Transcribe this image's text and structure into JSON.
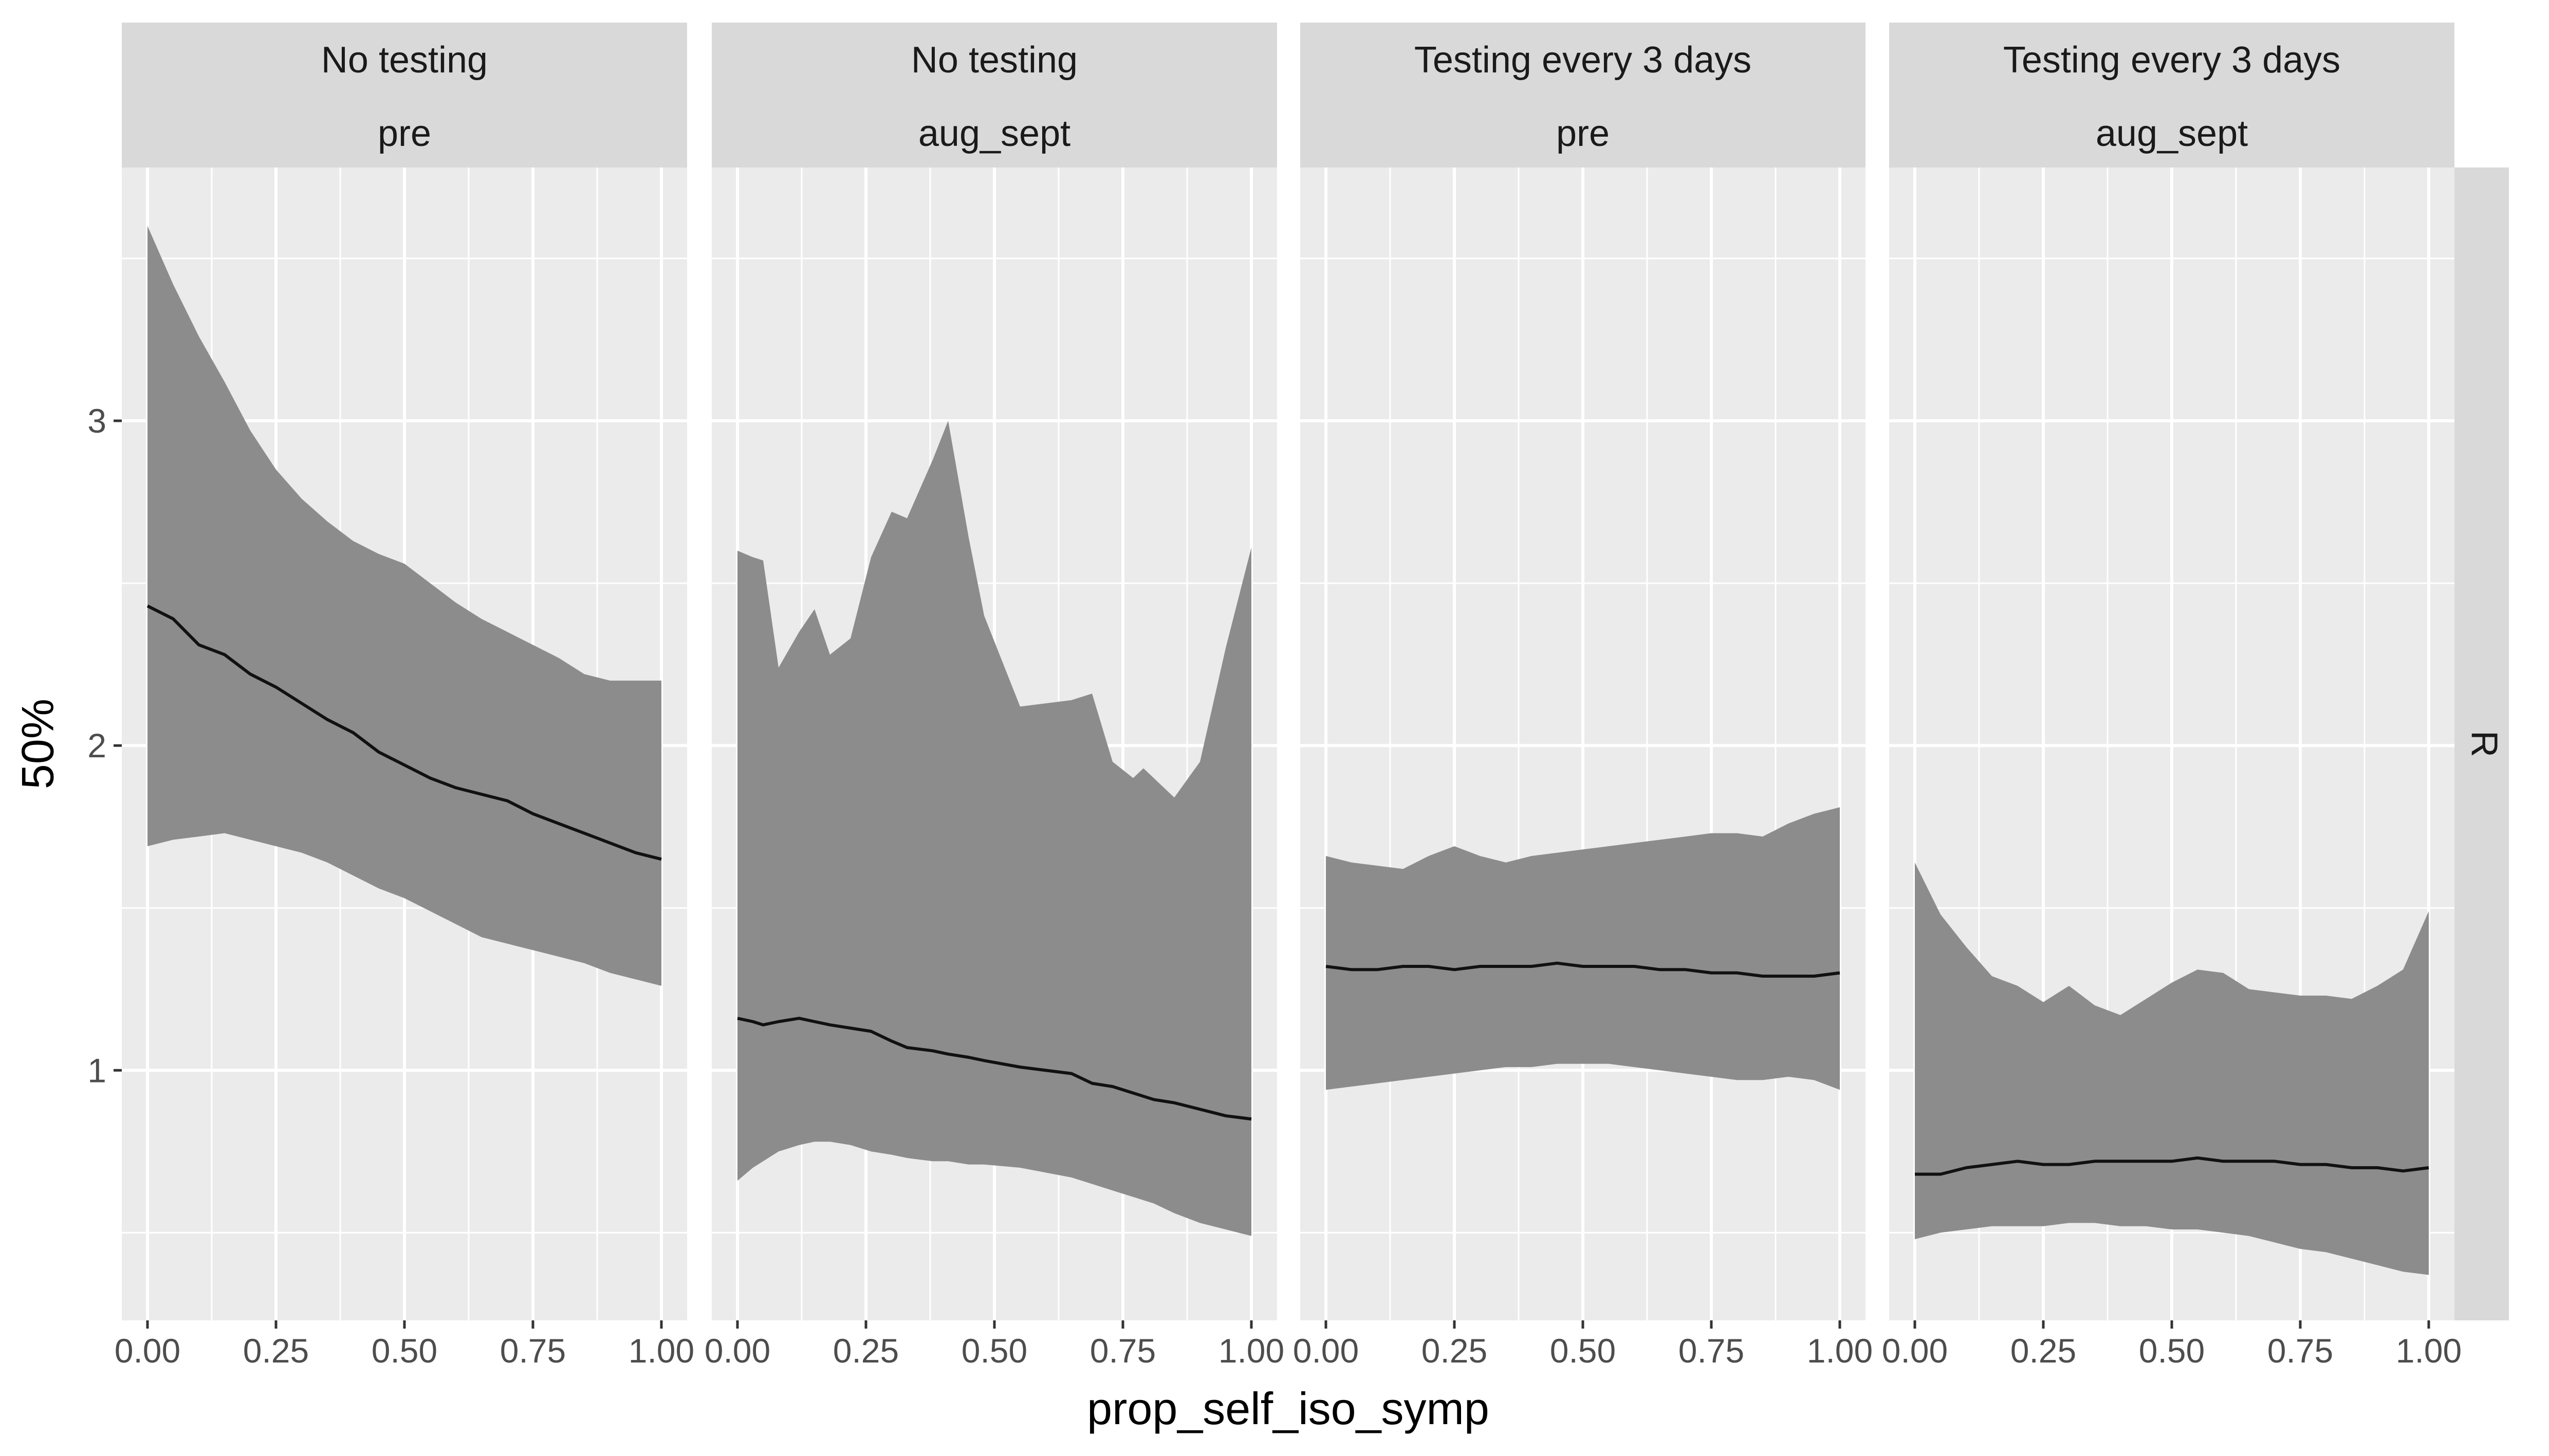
{
  "chart_data": {
    "type": "area",
    "xlabel": "prop_self_iso_symp",
    "ylabel": "50%",
    "row_strip": "R",
    "x_ticks": [
      0,
      0.25,
      0.5,
      0.75,
      1
    ],
    "x_tick_labels": [
      "0.00",
      "0.25",
      "0.50",
      "0.75",
      "1.00"
    ],
    "y_ticks": [
      1,
      2,
      3
    ],
    "y_tick_labels": [
      "1",
      "2",
      "3"
    ],
    "xlim": [
      -0.05,
      1.05
    ],
    "ylim": [
      0.23,
      3.78
    ],
    "grid": true,
    "colors": {
      "panel_bg": "#ebebeb",
      "strip_bg": "#d9d9d9",
      "ribbon": "#8c8c8c",
      "line": "#111111",
      "grid": "#ffffff"
    },
    "panels": [
      {
        "strip": [
          "No testing",
          "pre"
        ],
        "x": [
          0,
          0.05,
          0.1,
          0.15,
          0.2,
          0.25,
          0.3,
          0.35,
          0.4,
          0.45,
          0.5,
          0.55,
          0.6,
          0.65,
          0.7,
          0.75,
          0.8,
          0.85,
          0.9,
          0.95,
          1.0
        ],
        "median": [
          2.43,
          2.39,
          2.31,
          2.28,
          2.22,
          2.18,
          2.13,
          2.08,
          2.04,
          1.98,
          1.94,
          1.9,
          1.87,
          1.85,
          1.83,
          1.79,
          1.76,
          1.73,
          1.7,
          1.67,
          1.65
        ],
        "upper": [
          3.6,
          3.42,
          3.26,
          3.12,
          2.97,
          2.85,
          2.76,
          2.69,
          2.63,
          2.59,
          2.56,
          2.5,
          2.44,
          2.39,
          2.35,
          2.31,
          2.27,
          2.22,
          2.2,
          2.2,
          2.2
        ],
        "lower": [
          1.69,
          1.71,
          1.72,
          1.73,
          1.71,
          1.69,
          1.67,
          1.64,
          1.6,
          1.56,
          1.53,
          1.49,
          1.45,
          1.41,
          1.39,
          1.37,
          1.35,
          1.33,
          1.3,
          1.28,
          1.26
        ]
      },
      {
        "strip": [
          "No testing",
          "aug_sept"
        ],
        "x": [
          0,
          0.03,
          0.05,
          0.08,
          0.12,
          0.15,
          0.18,
          0.22,
          0.26,
          0.3,
          0.33,
          0.38,
          0.41,
          0.45,
          0.48,
          0.55,
          0.65,
          0.69,
          0.73,
          0.77,
          0.79,
          0.81,
          0.85,
          0.9,
          0.95,
          1.0
        ],
        "median": [
          1.16,
          1.15,
          1.14,
          1.15,
          1.16,
          1.15,
          1.14,
          1.13,
          1.12,
          1.09,
          1.07,
          1.06,
          1.05,
          1.04,
          1.03,
          1.01,
          0.99,
          0.96,
          0.95,
          0.93,
          0.92,
          0.91,
          0.9,
          0.88,
          0.86,
          0.85
        ],
        "upper": [
          2.6,
          2.58,
          2.57,
          2.24,
          2.35,
          2.42,
          2.28,
          2.33,
          2.58,
          2.72,
          2.7,
          2.88,
          3.0,
          2.64,
          2.4,
          2.12,
          2.14,
          2.16,
          1.95,
          1.9,
          1.93,
          1.9,
          1.84,
          1.95,
          2.3,
          2.61
        ],
        "lower": [
          0.66,
          0.7,
          0.72,
          0.75,
          0.77,
          0.78,
          0.78,
          0.77,
          0.75,
          0.74,
          0.73,
          0.72,
          0.72,
          0.71,
          0.71,
          0.7,
          0.67,
          0.65,
          0.63,
          0.61,
          0.6,
          0.59,
          0.56,
          0.53,
          0.51,
          0.49
        ]
      },
      {
        "strip": [
          "Testing every 3 days",
          "pre"
        ],
        "x": [
          0,
          0.05,
          0.1,
          0.15,
          0.2,
          0.25,
          0.3,
          0.35,
          0.4,
          0.45,
          0.5,
          0.55,
          0.6,
          0.65,
          0.7,
          0.75,
          0.8,
          0.85,
          0.9,
          0.95,
          1.0
        ],
        "median": [
          1.32,
          1.31,
          1.31,
          1.32,
          1.32,
          1.31,
          1.32,
          1.32,
          1.32,
          1.33,
          1.32,
          1.32,
          1.32,
          1.31,
          1.31,
          1.3,
          1.3,
          1.29,
          1.29,
          1.29,
          1.3
        ],
        "upper": [
          1.66,
          1.64,
          1.63,
          1.62,
          1.66,
          1.69,
          1.66,
          1.64,
          1.66,
          1.67,
          1.68,
          1.69,
          1.7,
          1.71,
          1.72,
          1.73,
          1.73,
          1.72,
          1.76,
          1.79,
          1.81
        ],
        "lower": [
          0.94,
          0.95,
          0.96,
          0.97,
          0.98,
          0.99,
          1.0,
          1.01,
          1.01,
          1.02,
          1.02,
          1.02,
          1.01,
          1.0,
          0.99,
          0.98,
          0.97,
          0.97,
          0.98,
          0.97,
          0.94
        ]
      },
      {
        "strip": [
          "Testing every 3 days",
          "aug_sept"
        ],
        "x": [
          0,
          0.05,
          0.1,
          0.15,
          0.2,
          0.25,
          0.3,
          0.35,
          0.4,
          0.45,
          0.5,
          0.55,
          0.6,
          0.65,
          0.7,
          0.75,
          0.8,
          0.85,
          0.9,
          0.95,
          1.0
        ],
        "median": [
          0.68,
          0.68,
          0.7,
          0.71,
          0.72,
          0.71,
          0.71,
          0.72,
          0.72,
          0.72,
          0.72,
          0.73,
          0.72,
          0.72,
          0.72,
          0.71,
          0.71,
          0.7,
          0.7,
          0.69,
          0.7
        ],
        "upper": [
          1.64,
          1.48,
          1.38,
          1.29,
          1.26,
          1.21,
          1.26,
          1.2,
          1.17,
          1.22,
          1.27,
          1.31,
          1.3,
          1.25,
          1.24,
          1.23,
          1.23,
          1.22,
          1.26,
          1.31,
          1.49
        ],
        "lower": [
          0.48,
          0.5,
          0.51,
          0.52,
          0.52,
          0.52,
          0.53,
          0.53,
          0.52,
          0.52,
          0.51,
          0.51,
          0.5,
          0.49,
          0.47,
          0.45,
          0.44,
          0.42,
          0.4,
          0.38,
          0.37
        ]
      }
    ]
  }
}
